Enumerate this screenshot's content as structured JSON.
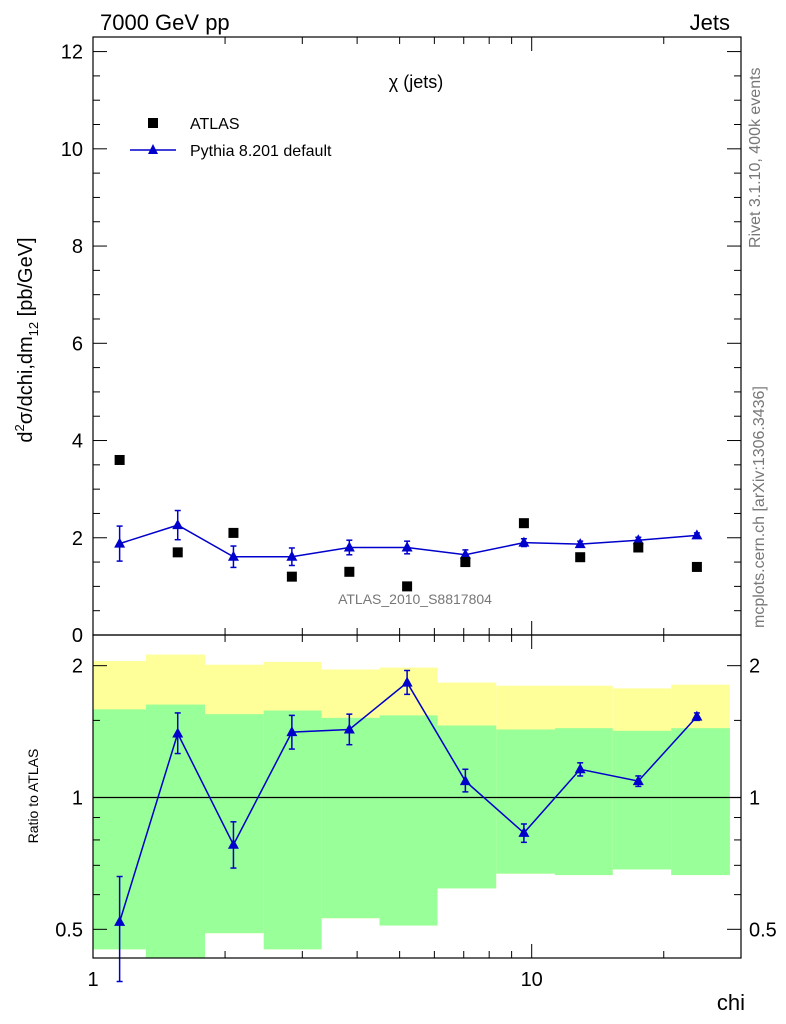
{
  "header": {
    "left": "7000 GeV pp",
    "right": "Jets"
  },
  "side_labels": {
    "rivet": "Rivet 3.1.10,  400k events",
    "mcplots": "mcplots.cern.ch [arXiv:1306.3436]"
  },
  "analysis_id": "ATLAS_2010_S8817804",
  "colors": {
    "mc": "#0000cc",
    "data": "#000000",
    "band_outer": "#ffff99",
    "band_inner": "#99ff99"
  },
  "chart_data": [
    {
      "type": "scatter",
      "title": "χ (jets)",
      "ylabel": "d²σ/dchi,dm₁₂ [pb/GeV]",
      "ylabel_parts": {
        "base": "d",
        "sup": "2",
        "mid": "σ/dchi,dm",
        "sub": "12",
        "unit": " [pb/GeV]"
      },
      "xlabel": "chi",
      "xscale": "log",
      "xlim": [
        1,
        30
      ],
      "ylim": [
        0,
        12.3
      ],
      "yticks": [
        "0",
        "2",
        "4",
        "6",
        "8",
        "10",
        "12"
      ],
      "legend_position": "top-left",
      "series": [
        {
          "name": "ATLAS",
          "marker": "square",
          "points": [
            {
              "x": 1.15,
              "y": 3.6
            },
            {
              "x": 1.56,
              "y": 1.7
            },
            {
              "x": 2.09,
              "y": 2.1
            },
            {
              "x": 2.84,
              "y": 1.2
            },
            {
              "x": 3.84,
              "y": 1.3
            },
            {
              "x": 5.2,
              "y": 1.0
            },
            {
              "x": 7.06,
              "y": 1.5
            },
            {
              "x": 9.6,
              "y": 2.3
            },
            {
              "x": 12.9,
              "y": 1.6
            },
            {
              "x": 17.5,
              "y": 1.8
            },
            {
              "x": 23.8,
              "y": 1.4
            }
          ]
        },
        {
          "name": "Pythia 8.201 default",
          "marker": "triangle",
          "points": [
            {
              "x": 1.15,
              "y": 1.88,
              "err": 0.36
            },
            {
              "x": 1.56,
              "y": 2.26,
              "err": 0.3
            },
            {
              "x": 2.09,
              "y": 1.61,
              "err": 0.22
            },
            {
              "x": 2.84,
              "y": 1.61,
              "err": 0.18
            },
            {
              "x": 3.84,
              "y": 1.8,
              "err": 0.15
            },
            {
              "x": 5.2,
              "y": 1.8,
              "err": 0.13
            },
            {
              "x": 7.06,
              "y": 1.65,
              "err": 0.1
            },
            {
              "x": 9.6,
              "y": 1.9,
              "err": 0.08
            },
            {
              "x": 12.9,
              "y": 1.87,
              "err": 0.06
            },
            {
              "x": 17.5,
              "y": 1.95,
              "err": 0.06
            },
            {
              "x": 23.8,
              "y": 2.05,
              "err": 0.05
            }
          ]
        }
      ]
    },
    {
      "type": "line",
      "ylabel": "Ratio to ATLAS",
      "xlabel": "chi",
      "xscale": "log",
      "yscale": "log",
      "xlim": [
        1,
        30
      ],
      "ylim": [
        0.43,
        2.35
      ],
      "yticks": [
        "0.5",
        "1",
        "2"
      ],
      "xticks": [
        "1",
        "10"
      ],
      "bin_edges": [
        1.0,
        1.32,
        1.8,
        2.45,
        3.32,
        4.5,
        6.1,
        8.3,
        11.3,
        15.3,
        20.8,
        28.3
      ],
      "band_outer": [
        {
          "lo": 0.45,
          "hi": 2.05
        },
        {
          "lo": 0.4,
          "hi": 2.12
        },
        {
          "lo": 0.49,
          "hi": 2.01
        },
        {
          "lo": 0.45,
          "hi": 2.04
        },
        {
          "lo": 0.53,
          "hi": 1.96
        },
        {
          "lo": 0.51,
          "hi": 1.98
        },
        {
          "lo": 0.62,
          "hi": 1.83
        },
        {
          "lo": 0.67,
          "hi": 1.8
        },
        {
          "lo": 0.665,
          "hi": 1.8
        },
        {
          "lo": 0.685,
          "hi": 1.775
        },
        {
          "lo": 0.665,
          "hi": 1.81
        }
      ],
      "band_inner": [
        {
          "lo": 0.45,
          "hi": 1.59
        },
        {
          "lo": 0.4,
          "hi": 1.63
        },
        {
          "lo": 0.49,
          "hi": 1.55
        },
        {
          "lo": 0.45,
          "hi": 1.58
        },
        {
          "lo": 0.53,
          "hi": 1.52
        },
        {
          "lo": 0.51,
          "hi": 1.54
        },
        {
          "lo": 0.62,
          "hi": 1.46
        },
        {
          "lo": 0.67,
          "hi": 1.43
        },
        {
          "lo": 0.665,
          "hi": 1.44
        },
        {
          "lo": 0.685,
          "hi": 1.42
        },
        {
          "lo": 0.665,
          "hi": 1.44
        }
      ],
      "reference_line": 1,
      "series": [
        {
          "name": "Pythia 8.201 default",
          "points": [
            {
              "x": 1.15,
              "y": 0.52,
              "err_lo": 0.14,
              "err_hi": 0.14
            },
            {
              "x": 1.56,
              "y": 1.4,
              "err_lo": 0.14,
              "err_hi": 0.16
            },
            {
              "x": 2.09,
              "y": 0.78,
              "err_lo": 0.09,
              "err_hi": 0.1
            },
            {
              "x": 2.84,
              "y": 1.41,
              "err_lo": 0.12,
              "err_hi": 0.13
            },
            {
              "x": 3.84,
              "y": 1.43,
              "err_lo": 0.11,
              "err_hi": 0.12
            },
            {
              "x": 5.2,
              "y": 1.83,
              "err_lo": 0.11,
              "err_hi": 0.12
            },
            {
              "x": 7.06,
              "y": 1.09,
              "err_lo": 0.06,
              "err_hi": 0.07
            },
            {
              "x": 9.6,
              "y": 0.83,
              "err_lo": 0.04,
              "err_hi": 0.04
            },
            {
              "x": 12.9,
              "y": 1.16,
              "err_lo": 0.04,
              "err_hi": 0.04
            },
            {
              "x": 17.5,
              "y": 1.09,
              "err_lo": 0.03,
              "err_hi": 0.03
            },
            {
              "x": 23.8,
              "y": 1.53,
              "err_lo": 0.03,
              "err_hi": 0.03
            }
          ]
        }
      ]
    }
  ]
}
